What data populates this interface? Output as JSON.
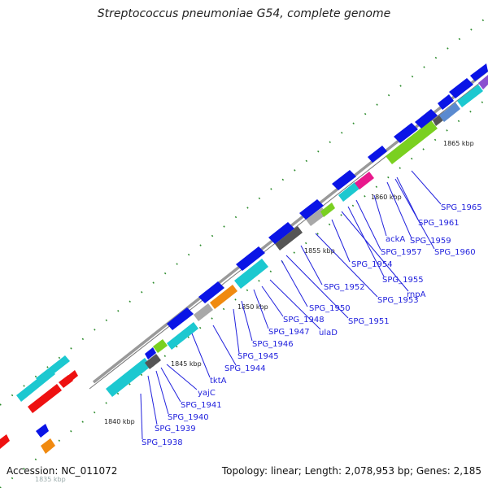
{
  "title": "Streptococcus pneumoniae G54, complete genome",
  "footer": {
    "accession": "Accession: NC_011072",
    "summary": "Topology: linear; Length: 2,078,953 bp; Genes: 2,185"
  },
  "ticks": [
    "1835 kbp",
    "1840 kbp",
    "1845 kbp",
    "1850 kbp",
    "1855 kbp",
    "1860 kbp",
    "1865 kbp"
  ],
  "gene_labels": [
    "SPG_1938",
    "SPG_1939",
    "SPG_1940",
    "SPG_1941",
    "yajC",
    "tktA",
    "SPG_1944",
    "SPG_1945",
    "SPG_1946",
    "SPG_1947",
    "SPG_1948",
    "ulaD",
    "SPG_1950",
    "SPG_1951",
    "SPG_1952",
    "SPG_1953",
    "SPG_1954",
    "rnpA",
    "SPG_1955",
    "SPG_1957",
    "ackA",
    "SPG_1959",
    "SPG_1960",
    "SPG_1961",
    "SPG_1965"
  ],
  "colors": {
    "backbone": "#999999",
    "blue_gene": "#0a14e6",
    "cyan_gene": "#1cc8d0",
    "red_gene": "#ee1111",
    "orange_gene": "#f08a10",
    "green_gene": "#7ad020",
    "gray_gene": "#a8a8a8",
    "magenta_gene": "#e8188c",
    "label_line": "#2222dd",
    "tick_mark": "#2a8a2a"
  }
}
